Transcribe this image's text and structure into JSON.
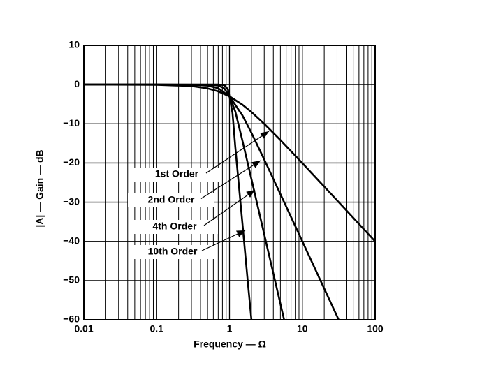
{
  "chart_data": {
    "type": "line",
    "xlabel": "Frequency — Ω",
    "ylabel": "|A| — Gain — dB",
    "xscale": "log",
    "grid": true,
    "xlim": [
      0.01,
      100
    ],
    "ylim": [
      -60,
      10
    ],
    "xticks": [
      0.01,
      0.1,
      1,
      10,
      100
    ],
    "xminorticks": [
      0.02,
      0.03,
      0.04,
      0.05,
      0.06,
      0.07,
      0.08,
      0.09,
      0.2,
      0.3,
      0.4,
      0.5,
      0.6,
      0.7,
      0.8,
      0.9,
      2,
      3,
      4,
      5,
      6,
      7,
      8,
      9,
      20,
      30,
      40,
      50,
      60,
      70,
      80,
      90
    ],
    "yticks": [
      10,
      0,
      {
        "value": -10,
        "label": "−10"
      },
      {
        "value": -20,
        "label": "−20"
      },
      {
        "value": -30,
        "label": "−30"
      },
      {
        "value": -40,
        "label": "−40"
      },
      {
        "value": -50,
        "label": "−50"
      },
      {
        "value": -60,
        "label": "−60"
      }
    ],
    "series": [
      {
        "name": "1st Order",
        "color": "#000000",
        "x": [
          0.01,
          0.1,
          0.3,
          0.5,
          0.7,
          1,
          1.5,
          2,
          3,
          5,
          10,
          20,
          50,
          100
        ],
        "values": [
          0,
          -0.04,
          -0.37,
          -0.97,
          -1.74,
          -3.01,
          -5.12,
          -6.99,
          -10,
          -14.15,
          -20.04,
          -26.03,
          -33.98,
          -40
        ]
      },
      {
        "name": "2nd Order",
        "color": "#000000",
        "x": [
          0.01,
          0.1,
          0.3,
          0.5,
          0.7,
          1,
          1.5,
          2,
          3,
          5,
          10,
          20,
          31.6
        ],
        "values": [
          0,
          0,
          -0.04,
          -0.26,
          -0.94,
          -3.01,
          -7.83,
          -12.3,
          -19.1,
          -27.96,
          -40,
          -52.04,
          -60
        ]
      },
      {
        "name": "4th Order",
        "color": "#000000",
        "x": [
          0.01,
          0.1,
          0.5,
          0.7,
          0.85,
          1,
          1.2,
          1.5,
          2,
          3,
          4,
          5.62
        ],
        "values": [
          0,
          0,
          -0.02,
          -0.23,
          -0.96,
          -3.01,
          -6.85,
          -14.25,
          -24.1,
          -38.2,
          -48.2,
          -60
        ]
      },
      {
        "name": "10th Order",
        "color": "#000000",
        "x": [
          0.01,
          0.1,
          0.7,
          0.85,
          0.95,
          1,
          1.1,
          1.2,
          1.5,
          1.8,
          2
        ],
        "values": [
          0,
          0,
          0,
          -0.16,
          -1.21,
          -3.01,
          -7.25,
          -15.9,
          -35.2,
          -51.1,
          -60
        ]
      }
    ]
  }
}
